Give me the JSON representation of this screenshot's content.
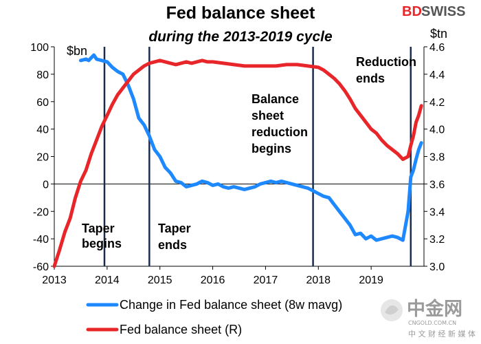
{
  "brand": {
    "part1": "BD",
    "part2": "SWISS",
    "color_red": "#e8262a",
    "color_dark": "#555555"
  },
  "watermark": {
    "logo_text": "中金网",
    "site": "CNGOLD.COM.CN",
    "tagline": "中 文 财 经 新 媒 体"
  },
  "chart_data": {
    "type": "line",
    "title": "Fed balance sheet",
    "subtitle": "during the 2013-2019 cycle",
    "left_unit": "$bn",
    "right_unit": "$tn",
    "x_ticks": [
      "2013",
      "2014",
      "2015",
      "2016",
      "2017",
      "2018",
      "2019"
    ],
    "xlim": [
      2013.0,
      2020.0
    ],
    "y_left": {
      "lim": [
        -60,
        100
      ],
      "ticks": [
        "100",
        "80",
        "60",
        "40",
        "20",
        "0",
        "-20",
        "-40",
        "-60"
      ]
    },
    "y_right": {
      "lim": [
        3.0,
        4.6
      ],
      "ticks": [
        "4.6",
        "4.4",
        "4.2",
        "4.0",
        "3.8",
        "3.6",
        "3.4",
        "3.2",
        "3.0"
      ]
    },
    "zero_line": 0,
    "vertical_lines": [
      2013.95,
      2014.8,
      2017.9,
      2019.75
    ],
    "annotations": [
      {
        "lines": [
          "Taper",
          "begins"
        ]
      },
      {
        "lines": [
          "Taper",
          "ends"
        ]
      },
      {
        "lines": [
          "Balance",
          "sheet",
          "reduction",
          "begins"
        ]
      },
      {
        "lines": [
          "Reduction",
          "ends"
        ]
      }
    ],
    "series": [
      {
        "name": "Change in Fed balance sheet (8w mavg)",
        "axis": "left",
        "color": "#1e88ff",
        "x": [
          2013.5,
          2013.6,
          2013.65,
          2013.75,
          2013.8,
          2013.9,
          2014.0,
          2014.1,
          2014.2,
          2014.3,
          2014.4,
          2014.5,
          2014.6,
          2014.7,
          2014.8,
          2014.9,
          2015.0,
          2015.1,
          2015.2,
          2015.3,
          2015.4,
          2015.5,
          2015.6,
          2015.7,
          2015.8,
          2015.9,
          2016.0,
          2016.1,
          2016.2,
          2016.3,
          2016.4,
          2016.5,
          2016.6,
          2016.7,
          2016.8,
          2016.9,
          2017.0,
          2017.1,
          2017.2,
          2017.3,
          2017.4,
          2017.5,
          2017.6,
          2017.7,
          2017.8,
          2017.9,
          2018.0,
          2018.1,
          2018.2,
          2018.3,
          2018.4,
          2018.5,
          2018.6,
          2018.7,
          2018.8,
          2018.9,
          2019.0,
          2019.1,
          2019.2,
          2019.3,
          2019.4,
          2019.5,
          2019.6,
          2019.7,
          2019.75,
          2019.8,
          2019.85,
          2019.9,
          2019.95
        ],
        "values": [
          90,
          91,
          90,
          94,
          91,
          90,
          89,
          85,
          82,
          80,
          72,
          62,
          48,
          43,
          35,
          25,
          20,
          12,
          8,
          2,
          1,
          -2,
          -1,
          0,
          2,
          1,
          -1,
          0,
          -2,
          -3,
          -2,
          -3,
          -4,
          -3,
          -2,
          0,
          1,
          2,
          1,
          2,
          1,
          0,
          -1,
          -2,
          -3,
          -5,
          -7,
          -9,
          -10,
          -15,
          -20,
          -25,
          -30,
          -37,
          -36,
          -40,
          -38,
          -41,
          -40,
          -39,
          -38,
          -39,
          -41,
          -20,
          5,
          10,
          18,
          25,
          30
        ]
      },
      {
        "name": "Fed balance sheet (R)",
        "axis": "right",
        "color": "#e8262a",
        "x": [
          2013.0,
          2013.1,
          2013.2,
          2013.3,
          2013.4,
          2013.5,
          2013.6,
          2013.7,
          2013.8,
          2013.9,
          2014.0,
          2014.1,
          2014.2,
          2014.3,
          2014.4,
          2014.5,
          2014.6,
          2014.7,
          2014.8,
          2014.9,
          2015.0,
          2015.1,
          2015.2,
          2015.3,
          2015.4,
          2015.5,
          2015.6,
          2015.7,
          2015.8,
          2015.9,
          2016.0,
          2016.2,
          2016.4,
          2016.6,
          2016.8,
          2017.0,
          2017.2,
          2017.4,
          2017.6,
          2017.8,
          2018.0,
          2018.1,
          2018.2,
          2018.3,
          2018.4,
          2018.5,
          2018.6,
          2018.7,
          2018.8,
          2018.9,
          2019.0,
          2019.1,
          2019.2,
          2019.3,
          2019.4,
          2019.5,
          2019.6,
          2019.7,
          2019.75,
          2019.8,
          2019.85,
          2019.9,
          2019.95
        ],
        "values": [
          3.0,
          3.12,
          3.25,
          3.35,
          3.5,
          3.62,
          3.7,
          3.82,
          3.92,
          4.02,
          4.1,
          4.18,
          4.25,
          4.3,
          4.35,
          4.4,
          4.43,
          4.46,
          4.48,
          4.49,
          4.5,
          4.49,
          4.48,
          4.47,
          4.48,
          4.49,
          4.48,
          4.49,
          4.5,
          4.49,
          4.49,
          4.48,
          4.47,
          4.46,
          4.46,
          4.46,
          4.46,
          4.47,
          4.47,
          4.46,
          4.45,
          4.43,
          4.4,
          4.37,
          4.33,
          4.28,
          4.22,
          4.15,
          4.1,
          4.05,
          4.0,
          3.97,
          3.92,
          3.88,
          3.85,
          3.82,
          3.78,
          3.8,
          3.88,
          3.95,
          4.05,
          4.1,
          4.17
        ]
      }
    ],
    "grid": false,
    "legend_position": "bottom"
  }
}
